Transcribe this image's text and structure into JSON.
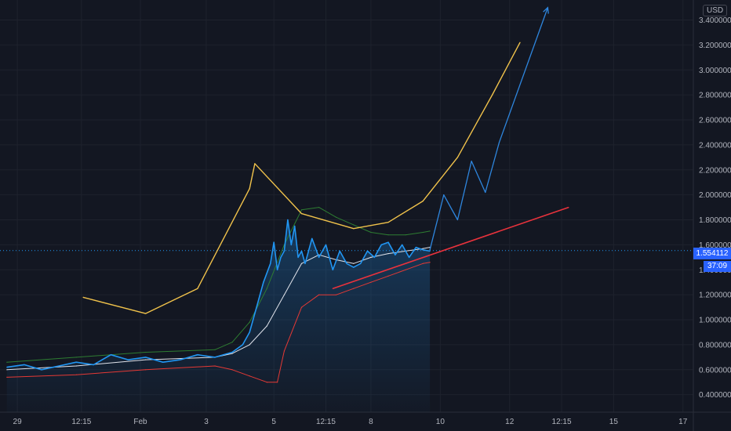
{
  "axis": {
    "currency": "USD"
  },
  "price_label": "1.554112",
  "countdown_label": "37:09",
  "colors": {
    "background": "#131722",
    "grid": "#1e222d",
    "price": "#2196f3",
    "basis": "#e0e3eb",
    "upper_band": "#2e7d32",
    "lower_band": "#e53935",
    "cup_curve": "#f0c24b",
    "trend_line": "#e8323c",
    "projection": "#2e86de",
    "label_bg": "#2962ff"
  },
  "chart_data": {
    "type": "line",
    "title": "",
    "xlabel": "",
    "ylabel": "",
    "ylim": [
      0.26,
      3.56
    ],
    "grid": true,
    "legend": "none",
    "y_ticks": [
      "0.400000",
      "0.600000",
      "0.800000",
      "1.000000",
      "1.200000",
      "1.400000",
      "1.600000",
      "1.800000",
      "2.000000",
      "2.200000",
      "2.400000",
      "2.600000",
      "2.800000",
      "3.000000",
      "3.200000",
      "3.400000"
    ],
    "x_ticks": [
      {
        "label": "29",
        "t": 0.3
      },
      {
        "label": "12:15",
        "t": 2.15
      },
      {
        "label": "Feb",
        "t": 3.85
      },
      {
        "label": "3",
        "t": 5.75
      },
      {
        "label": "5",
        "t": 7.7
      },
      {
        "label": "12:15",
        "t": 9.2
      },
      {
        "label": "8",
        "t": 10.5
      },
      {
        "label": "10",
        "t": 12.5
      },
      {
        "label": "12",
        "t": 14.5
      },
      {
        "label": "12:15",
        "t": 16.0
      },
      {
        "label": "15",
        "t": 17.5
      },
      {
        "label": "17",
        "t": 19.5
      }
    ],
    "series": [
      {
        "key": "price",
        "x": [
          0,
          0.5,
          1,
          1.5,
          2,
          2.5,
          3,
          3.5,
          4,
          4.5,
          5,
          5.5,
          6,
          6.5,
          6.8,
          7,
          7.2,
          7.4,
          7.6,
          7.7,
          7.8,
          7.9,
          8,
          8.1,
          8.2,
          8.3,
          8.4,
          8.5,
          8.6,
          8.8,
          9,
          9.2,
          9.4,
          9.6,
          9.8,
          10,
          10.2,
          10.4,
          10.6,
          10.8,
          11,
          11.2,
          11.4,
          11.6,
          11.8,
          12,
          12.2
        ],
        "y": [
          0.62,
          0.64,
          0.6,
          0.63,
          0.66,
          0.64,
          0.72,
          0.68,
          0.7,
          0.66,
          0.68,
          0.72,
          0.7,
          0.74,
          0.8,
          0.9,
          1.1,
          1.3,
          1.45,
          1.62,
          1.4,
          1.5,
          1.55,
          1.8,
          1.6,
          1.75,
          1.5,
          1.55,
          1.45,
          1.65,
          1.5,
          1.6,
          1.4,
          1.55,
          1.45,
          1.42,
          1.45,
          1.55,
          1.5,
          1.6,
          1.62,
          1.52,
          1.6,
          1.5,
          1.58,
          1.56,
          1.55
        ]
      },
      {
        "key": "basis",
        "x": [
          0,
          2,
          4,
          6,
          6.5,
          7,
          7.5,
          8,
          8.5,
          9,
          9.5,
          10,
          10.5,
          11,
          11.5,
          12,
          12.2
        ],
        "y": [
          0.6,
          0.63,
          0.68,
          0.7,
          0.73,
          0.8,
          0.95,
          1.2,
          1.45,
          1.52,
          1.48,
          1.45,
          1.5,
          1.53,
          1.55,
          1.57,
          1.58
        ]
      },
      {
        "key": "upper_band",
        "x": [
          0,
          2,
          4,
          6,
          6.5,
          7,
          7.5,
          8,
          8.5,
          9,
          9.5,
          10,
          10.5,
          11,
          11.5,
          12,
          12.2
        ],
        "y": [
          0.66,
          0.7,
          0.74,
          0.76,
          0.82,
          0.98,
          1.25,
          1.6,
          1.88,
          1.9,
          1.82,
          1.76,
          1.7,
          1.68,
          1.68,
          1.7,
          1.71
        ]
      },
      {
        "key": "lower_band",
        "x": [
          0,
          2,
          4,
          6,
          6.5,
          7,
          7.5,
          7.8,
          8,
          8.5,
          9,
          9.5,
          10,
          10.5,
          11,
          11.5,
          12,
          12.2
        ],
        "y": [
          0.54,
          0.56,
          0.6,
          0.63,
          0.6,
          0.55,
          0.5,
          0.5,
          0.75,
          1.1,
          1.2,
          1.2,
          1.25,
          1.3,
          1.35,
          1.4,
          1.45,
          1.46
        ]
      },
      {
        "key": "cup_curve",
        "x": [
          2.2,
          4,
          5.5,
          7,
          7.15,
          8.5,
          10,
          11,
          12,
          13,
          14,
          14.8
        ],
        "y": [
          1.18,
          1.05,
          1.25,
          2.05,
          2.25,
          1.85,
          1.73,
          1.78,
          1.95,
          2.3,
          2.8,
          3.22
        ]
      },
      {
        "key": "trend_line",
        "x": [
          9.4,
          16.2
        ],
        "y": [
          1.25,
          1.9
        ]
      },
      {
        "key": "projection",
        "x": [
          12.2,
          12.6,
          13,
          13.4,
          13.8,
          14.2,
          15.6
        ],
        "y": [
          1.56,
          2.0,
          1.8,
          2.27,
          2.02,
          2.42,
          3.5
        ]
      }
    ]
  }
}
